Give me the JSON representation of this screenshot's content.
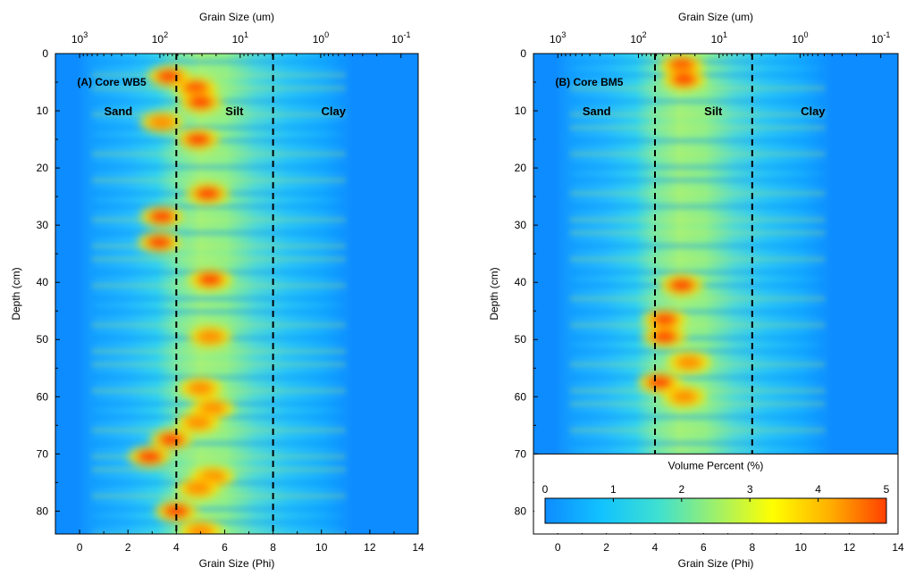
{
  "chart_data": [
    {
      "type": "heatmap",
      "title": "(A) Core WB5",
      "xlabel": "Grain Size (Phi)",
      "top_xlabel": "Grain Size (um)",
      "ylabel": "Depth (cm)",
      "xlim": [
        -1,
        14
      ],
      "ylim": [
        84,
        0
      ],
      "x_ticks": [
        "0",
        "2",
        "4",
        "6",
        "8",
        "10",
        "12",
        "14"
      ],
      "y_ticks": [
        "0",
        "10",
        "20",
        "30",
        "40",
        "50",
        "60",
        "70",
        "80"
      ],
      "top_ticks": [
        {
          "phi": -0.0,
          "base": "10",
          "exp": "3"
        },
        {
          "phi": 3.32,
          "base": "10",
          "exp": "2"
        },
        {
          "phi": 6.64,
          "base": "10",
          "exp": "1"
        },
        {
          "phi": 9.97,
          "base": "10",
          "exp": "0"
        },
        {
          "phi": 13.29,
          "base": "10",
          "exp": "-1"
        }
      ],
      "boundaries_phi": [
        4,
        8
      ],
      "regions": [
        {
          "label": "Sand",
          "phi": 1.6,
          "depth": 10
        },
        {
          "label": "Silt",
          "phi": 6.4,
          "depth": 10
        },
        {
          "label": "Clay",
          "phi": 10.5,
          "depth": 10
        }
      ],
      "hotspots": [
        {
          "phi": 3.7,
          "depth": 4,
          "value": 4.5
        },
        {
          "phi": 4.8,
          "depth": 6,
          "value": 5.0
        },
        {
          "phi": 5.0,
          "depth": 8.5,
          "value": 4.6
        },
        {
          "phi": 3.4,
          "depth": 12,
          "value": 3.6
        },
        {
          "phi": 4.9,
          "depth": 15,
          "value": 4.8
        },
        {
          "phi": 5.3,
          "depth": 24.5,
          "value": 4.6
        },
        {
          "phi": 3.4,
          "depth": 28.5,
          "value": 4.8
        },
        {
          "phi": 3.3,
          "depth": 33,
          "value": 4.8
        },
        {
          "phi": 5.4,
          "depth": 39.5,
          "value": 4.8
        },
        {
          "phi": 5.4,
          "depth": 49.5,
          "value": 4.3
        },
        {
          "phi": 5.0,
          "depth": 58.5,
          "value": 3.8
        },
        {
          "phi": 5.5,
          "depth": 62,
          "value": 4.0
        },
        {
          "phi": 4.9,
          "depth": 64.5,
          "value": 3.5
        },
        {
          "phi": 3.8,
          "depth": 67.5,
          "value": 4.8
        },
        {
          "phi": 2.9,
          "depth": 70.5,
          "value": 5.0
        },
        {
          "phi": 5.5,
          "depth": 74,
          "value": 3.6
        },
        {
          "phi": 4.9,
          "depth": 76,
          "value": 4.0
        },
        {
          "phi": 4.0,
          "depth": 80,
          "value": 5.0
        },
        {
          "phi": 5.0,
          "depth": 83.5,
          "value": 3.8
        }
      ]
    },
    {
      "type": "heatmap",
      "title": "(B) Core BM5",
      "xlabel": "Grain Size (Phi)",
      "top_xlabel": "Grain Size (um)",
      "ylabel": "Depth (cm)",
      "xlim": [
        -1,
        14
      ],
      "ylim": [
        84,
        0
      ],
      "data_depth_max": 70,
      "x_ticks": [
        "0",
        "2",
        "4",
        "6",
        "8",
        "10",
        "12",
        "14"
      ],
      "y_ticks": [
        "0",
        "10",
        "20",
        "30",
        "40",
        "50",
        "60",
        "70",
        "80"
      ],
      "top_ticks": [
        {
          "phi": -0.0,
          "base": "10",
          "exp": "3"
        },
        {
          "phi": 3.32,
          "base": "10",
          "exp": "2"
        },
        {
          "phi": 6.64,
          "base": "10",
          "exp": "1"
        },
        {
          "phi": 9.97,
          "base": "10",
          "exp": "0"
        },
        {
          "phi": 13.29,
          "base": "10",
          "exp": "-1"
        }
      ],
      "boundaries_phi": [
        4,
        8
      ],
      "regions": [
        {
          "label": "Sand",
          "phi": 1.6,
          "depth": 10
        },
        {
          "label": "Silt",
          "phi": 6.4,
          "depth": 10
        },
        {
          "label": "Clay",
          "phi": 10.5,
          "depth": 10
        }
      ],
      "hotspots": [
        {
          "phi": 5.1,
          "depth": 2,
          "value": 5.0
        },
        {
          "phi": 5.2,
          "depth": 4.5,
          "value": 5.0
        },
        {
          "phi": 5.1,
          "depth": 40.5,
          "value": 4.8
        },
        {
          "phi": 4.4,
          "depth": 46.5,
          "value": 5.0
        },
        {
          "phi": 4.4,
          "depth": 49.5,
          "value": 5.0
        },
        {
          "phi": 5.4,
          "depth": 54,
          "value": 3.4
        },
        {
          "phi": 4.2,
          "depth": 57.5,
          "value": 4.9
        },
        {
          "phi": 5.2,
          "depth": 60,
          "value": 3.4
        }
      ],
      "colorbar": {
        "label": "Volume Percent (%)",
        "min": 0,
        "max": 5,
        "ticks": [
          "0",
          "1",
          "2",
          "3",
          "4",
          "5"
        ],
        "colors": [
          "#0d8cff",
          "#12c3ff",
          "#3fe0d0",
          "#9ef06a",
          "#ffff00",
          "#ffb000",
          "#ff4000"
        ]
      }
    }
  ]
}
